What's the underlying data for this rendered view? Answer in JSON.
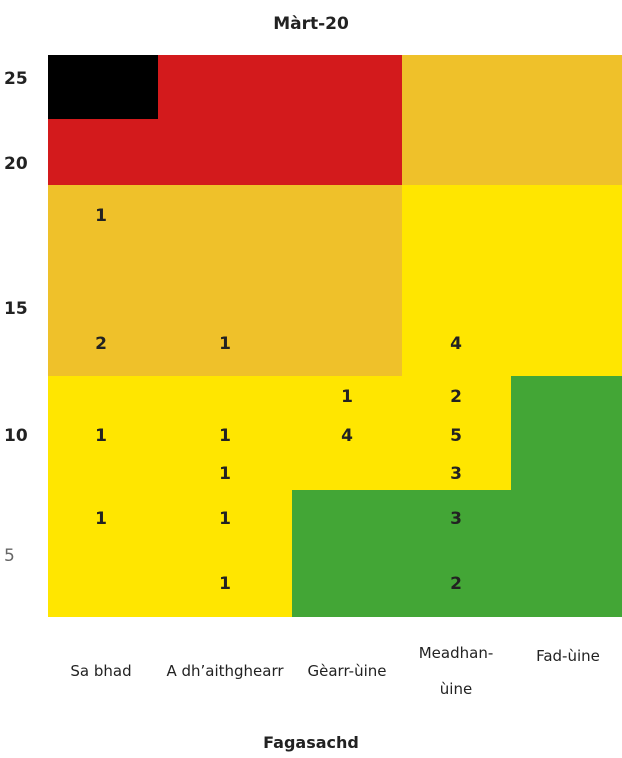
{
  "title": "Màrt-20",
  "x_axis_title": "Fagasachd",
  "columns": [
    "Sa bhad",
    "A dh’aithghearr",
    "Gèarr-ùine",
    "Meadhan-ùine",
    "Fad-ùine"
  ],
  "yticks": [
    25,
    20,
    15,
    10,
    5
  ],
  "rows": [
    [
      1,
      null,
      null,
      null,
      null
    ],
    [
      2,
      1,
      null,
      4,
      null
    ],
    [
      null,
      null,
      1,
      2,
      null
    ],
    [
      1,
      1,
      4,
      5,
      null
    ],
    [
      null,
      1,
      null,
      3,
      null
    ],
    [
      1,
      1,
      null,
      3,
      null
    ],
    [
      null,
      1,
      null,
      2,
      null
    ]
  ]
}
